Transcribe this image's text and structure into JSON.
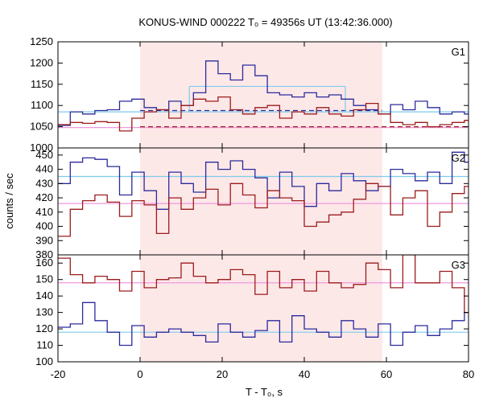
{
  "chart_data": {
    "type": "line",
    "title": "KONUS-WIND 000222 T₀ = 49356s UT (13:42:36.000)",
    "xlabel": "T - T₀, s",
    "ylabel": "counts / sec",
    "xlim": [
      -20,
      80
    ],
    "xticks": [
      "-20",
      "0",
      "20",
      "40",
      "60",
      "80"
    ],
    "shaded_interval": [
      0,
      59
    ],
    "colors": {
      "shade": "#fde8e8",
      "blue_series": "#2b2b9c",
      "red_series": "#9c1c1c",
      "light_blue": "#7ecbea",
      "pink": "#ee99dd",
      "axis": "#000000"
    },
    "bin_edges": [
      -20,
      -17,
      -14,
      -11,
      -8,
      -5,
      -2,
      1,
      4,
      7,
      10,
      13,
      16,
      19,
      22,
      25,
      28,
      31,
      34,
      37,
      40,
      43,
      46,
      49,
      52,
      55,
      58,
      61,
      64,
      67,
      70,
      73,
      76,
      79,
      80
    ],
    "panels": [
      {
        "label": "G1",
        "ylim": [
          1000,
          1250
        ],
        "yticks": [
          "1000",
          "1050",
          "1100",
          "1150",
          "1200",
          "1250"
        ],
        "series": [
          {
            "color_key": "blue_series",
            "values": [
              1053,
              1085,
              1080,
              1088,
              1090,
              1110,
              1115,
              1095,
              1090,
              1110,
              1100,
              1130,
              1205,
              1175,
              1160,
              1195,
              1170,
              1130,
              1125,
              1120,
              1130,
              1120,
              1125,
              1115,
              1100,
              1090,
              1080,
              1102,
              1090,
              1110,
              1095,
              1080,
              1085,
              1080
            ]
          },
          {
            "color_key": "red_series",
            "values": [
              1055,
              1060,
              1058,
              1062,
              1060,
              1040,
              1070,
              1085,
              1090,
              1070,
              1100,
              1115,
              1110,
              1120,
              1090,
              1080,
              1095,
              1100,
              1070,
              1085,
              1080,
              1095,
              1080,
              1075,
              1090,
              1105,
              1080,
              1060,
              1055,
              1060,
              1050,
              1055,
              1060,
              1065
            ]
          }
        ],
        "levels": [
          {
            "color_key": "light_blue",
            "style": "solid",
            "y": 1085,
            "x": [
              -20,
              80
            ]
          },
          {
            "color_key": "light_blue",
            "style": "solid",
            "y": 1145,
            "x": [
              12,
              50
            ]
          },
          {
            "color_key": "pink",
            "style": "solid",
            "y": 1048,
            "x": [
              -20,
              80
            ]
          },
          {
            "color_key": "red_series",
            "style": "dashed",
            "y": 1050,
            "x": [
              0,
              80
            ]
          },
          {
            "color_key": "blue_series",
            "style": "dashed",
            "y": 1088,
            "x": [
              0,
              59
            ]
          }
        ]
      },
      {
        "label": "G2",
        "ylim": [
          380,
          455
        ],
        "yticks": [
          "380",
          "390",
          "400",
          "410",
          "420",
          "430",
          "440",
          "450"
        ],
        "series": [
          {
            "color_key": "blue_series",
            "values": [
              430,
              445,
              448,
              447,
              442,
              422,
              438,
              425,
              412,
              438,
              430,
              424,
              445,
              440,
              446,
              440,
              434,
              420,
              438,
              428,
              414,
              430,
              425,
              437,
              432,
              425,
              428,
              440,
              437,
              432,
              438,
              430,
              452,
              445
            ]
          },
          {
            "color_key": "red_series",
            "values": [
              393,
              412,
              418,
              422,
              417,
              407,
              418,
              415,
              395,
              420,
              412,
              420,
              426,
              415,
              430,
              422,
              413,
              425,
              420,
              418,
              400,
              403,
              408,
              410,
              419,
              430,
              428,
              408,
              420,
              425,
              400,
              410,
              423,
              428
            ]
          }
        ],
        "levels": [
          {
            "color_key": "light_blue",
            "style": "solid",
            "y": 435,
            "x": [
              -20,
              80
            ]
          },
          {
            "color_key": "pink",
            "style": "solid",
            "y": 416,
            "x": [
              -20,
              80
            ]
          }
        ]
      },
      {
        "label": "G3",
        "ylim": [
          100,
          165
        ],
        "yticks": [
          "100",
          "110",
          "120",
          "130",
          "140",
          "150",
          "160"
        ],
        "series": [
          {
            "color_key": "blue_series",
            "values": [
              121,
              123,
              136,
              125,
              118,
              110,
              122,
              115,
              118,
              120,
              118,
              116,
              112,
              123,
              118,
              115,
              119,
              125,
              112,
              128,
              120,
              118,
              115,
              125,
              120,
              115,
              123,
              110,
              118,
              122,
              116,
              120,
              125,
              130
            ]
          },
          {
            "color_key": "red_series",
            "values": [
              163,
              153,
              148,
              152,
              150,
              143,
              155,
              145,
              150,
              151,
              160,
              152,
              148,
              150,
              156,
              153,
              141,
              155,
              145,
              150,
              143,
              155,
              148,
              145,
              147,
              160,
              156,
              145,
              165,
              148,
              148,
              155,
              145,
              130
            ]
          }
        ],
        "levels": [
          {
            "color_key": "light_blue",
            "style": "solid",
            "y": 118,
            "x": [
              -20,
              80
            ]
          },
          {
            "color_key": "pink",
            "style": "solid",
            "y": 148,
            "x": [
              -20,
              80
            ]
          }
        ]
      }
    ]
  }
}
